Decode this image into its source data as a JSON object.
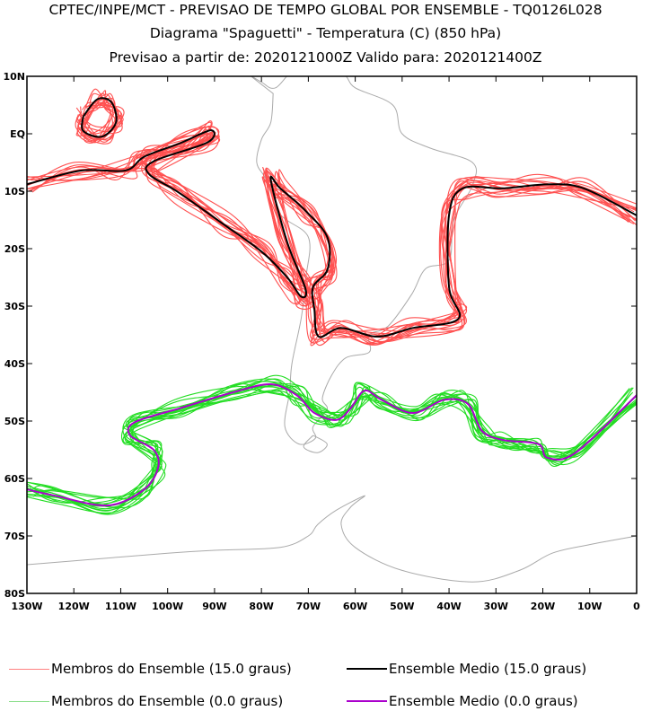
{
  "titles": [
    "CPTEC/INPE/MCT - PREVISAO DE TEMPO GLOBAL POR ENSEMBLE - TQ0126L028",
    "Diagrama \"Spaguetti\" - Temperatura (C) (850 hPa)",
    "Previsao a partir de: 2020121000Z  Valido para: 2020121400Z"
  ],
  "chart_data": {
    "type": "line",
    "title": "Diagrama \"Spaguetti\" - Temperatura (C) (850 hPa)",
    "xlim": [
      -130,
      0
    ],
    "ylim": [
      -80,
      10
    ],
    "x_ticks": [
      -130,
      -120,
      -110,
      -100,
      -90,
      -80,
      -70,
      -60,
      -50,
      -40,
      -30,
      -20,
      -10,
      0
    ],
    "x_tick_labels": [
      "130W",
      "120W",
      "110W",
      "100W",
      "90W",
      "80W",
      "70W",
      "60W",
      "50W",
      "40W",
      "30W",
      "20W",
      "10W",
      "0"
    ],
    "y_ticks": [
      10,
      0,
      -10,
      -20,
      -30,
      -40,
      -50,
      -60,
      -70,
      -80
    ],
    "y_tick_labels": [
      "10N",
      "EQ",
      "10S",
      "20S",
      "30S",
      "40S",
      "50S",
      "60S",
      "70S",
      "80S"
    ],
    "colors": {
      "member15": "#ff5050",
      "mean15": "#000000",
      "member0": "#22dd22",
      "mean0": "#aa00cc",
      "coast": "#aaaaaa"
    },
    "legend": [
      {
        "label": "Membros do Ensemble (15.0 graus)",
        "color": "#ff8080"
      },
      {
        "label": "Ensemble Medio (15.0 graus)",
        "color": "#000000"
      },
      {
        "label": "Membros do Ensemble (0.0 graus)",
        "color": "#88dd88"
      },
      {
        "label": "Ensemble Medio (0.0 graus)",
        "color": "#aa00cc"
      }
    ],
    "series": [
      {
        "name": "Ensemble Medio (15.0 graus)",
        "isotherm": 15.0,
        "points": [
          [
            -130,
            -8.8
          ],
          [
            -118.5,
            -6.4
          ],
          [
            -109,
            -6.4
          ],
          [
            -105,
            -4
          ],
          [
            -97.5,
            -1.7
          ],
          [
            -90.8,
            0.6
          ],
          [
            -91.5,
            -1.5
          ],
          [
            -103,
            -4.8
          ],
          [
            -104,
            -7
          ],
          [
            -97.5,
            -10.3
          ],
          [
            -88,
            -15.8
          ],
          [
            -80,
            -20.5
          ],
          [
            -74.5,
            -25
          ],
          [
            -71.6,
            -28.3
          ],
          [
            -70.6,
            -27
          ],
          [
            -74.5,
            -18.9
          ],
          [
            -78,
            -8
          ],
          [
            -76,
            -9.5
          ],
          [
            -70.6,
            -13.4
          ],
          [
            -65.9,
            -18.1
          ],
          [
            -65.9,
            -23.6
          ],
          [
            -69,
            -26.7
          ],
          [
            -68.7,
            -30.6
          ],
          [
            -67.8,
            -35.3
          ],
          [
            -63,
            -33.8
          ],
          [
            -55.3,
            -35.3
          ],
          [
            -47.7,
            -33.8
          ],
          [
            -38,
            -32.2
          ],
          [
            -40,
            -26.7
          ],
          [
            -40,
            -14.2
          ],
          [
            -37.1,
            -9.5
          ],
          [
            -28.5,
            -9.5
          ],
          [
            -19,
            -8.8
          ],
          [
            -11.3,
            -9.5
          ],
          [
            0,
            -14.2
          ]
        ]
      },
      {
        "name": "Ensemble Medio (15.0 graus) loop",
        "isotherm": 15.0,
        "points": [
          [
            -118,
            3
          ],
          [
            -115,
            6
          ],
          [
            -112,
            5.5
          ],
          [
            -111,
            2
          ],
          [
            -114,
            -0.5
          ],
          [
            -118,
            0.5
          ],
          [
            -118,
            3
          ]
        ]
      },
      {
        "name": "Ensemble Medio (0.0 graus)",
        "isotherm": 0.0,
        "points": [
          [
            -130,
            -61.9
          ],
          [
            -124,
            -63
          ],
          [
            -112.8,
            -64.7
          ],
          [
            -105,
            -61.9
          ],
          [
            -102,
            -58
          ],
          [
            -103,
            -55
          ],
          [
            -108,
            -52.5
          ],
          [
            -107,
            -50.2
          ],
          [
            -97.5,
            -47.8
          ],
          [
            -86,
            -45
          ],
          [
            -78,
            -43.6
          ],
          [
            -72.5,
            -45.5
          ],
          [
            -68.7,
            -48.6
          ],
          [
            -64,
            -49.8
          ],
          [
            -61,
            -47.8
          ],
          [
            -58,
            -44.7
          ],
          [
            -54.4,
            -46.3
          ],
          [
            -47.7,
            -48.6
          ],
          [
            -41,
            -46.3
          ],
          [
            -36,
            -47
          ],
          [
            -33,
            -51.7
          ],
          [
            -28.5,
            -53.3
          ],
          [
            -21,
            -54
          ],
          [
            -19,
            -56.4
          ],
          [
            -13,
            -55.5
          ],
          [
            0,
            -45.5
          ]
        ]
      }
    ]
  }
}
